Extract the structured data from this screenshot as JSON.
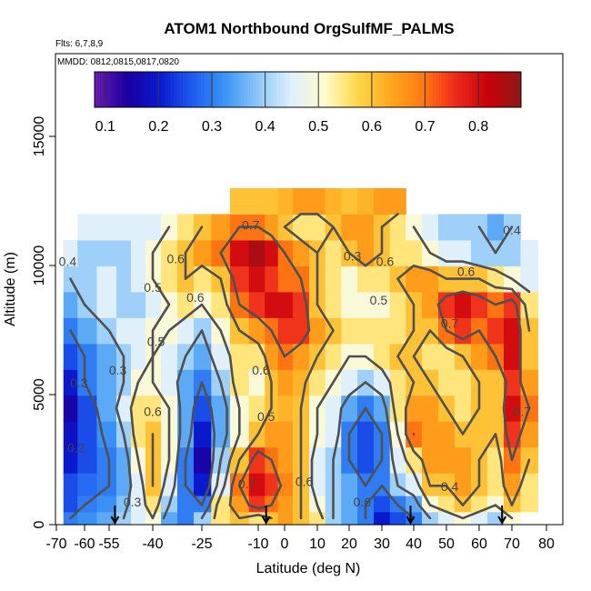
{
  "chart_data": {
    "type": "heatmap",
    "title": "ATOM1 Northbound OrgSulfMF_PALMS",
    "flights_label": "Flts: 6,7,8,9",
    "dates_label": "MMDD: 0812,0815,0817,0820",
    "xlabel": "Latitude (deg N)",
    "ylabel": "Altitude (m)",
    "xlim": [
      -70,
      85
    ],
    "ylim": [
      0,
      17500
    ],
    "x_tick_labels": [
      "-70",
      "-60",
      "-55",
      "-40",
      "-25",
      "-10",
      "0",
      "10",
      "20",
      "30",
      "40",
      "50",
      "60",
      "70",
      "80"
    ],
    "x_tick_values": [
      -70,
      -60,
      -55,
      -40,
      -25,
      -10,
      0,
      10,
      20,
      30,
      40,
      50,
      60,
      70,
      80
    ],
    "y_tick_labels": [
      "0",
      "5000",
      "10000",
      "15000"
    ],
    "y_tick_values": [
      0,
      5000,
      10000,
      15000
    ],
    "colorbar": {
      "range": [
        0.08,
        0.88
      ],
      "tick_labels": [
        "0.1",
        "0.2",
        "0.3",
        "0.4",
        "0.5",
        "0.6",
        "0.7",
        "0.8"
      ],
      "tick_values": [
        0.1,
        0.2,
        0.3,
        0.4,
        0.5,
        0.6,
        0.7,
        0.8
      ],
      "colors": [
        "#6a1bb0",
        "#1a00a0",
        "#0a1ad0",
        "#1f5cf0",
        "#3c96f5",
        "#8fc8f8",
        "#dff0fb",
        "#fffbd0",
        "#ffd84a",
        "#ffa820",
        "#ff7a12",
        "#ee2a1c",
        "#c8000a",
        "#8e1a1a"
      ]
    },
    "latitude_bins": [
      -65,
      -60,
      -55,
      -50,
      -45,
      -40,
      -35,
      -30,
      -25,
      -20,
      -15,
      -10,
      -5,
      0,
      5,
      10,
      15,
      20,
      25,
      30,
      35,
      40,
      45,
      50,
      55,
      60,
      65,
      70,
      75
    ],
    "altitude_bins": [
      250,
      750,
      1500,
      2500,
      3500,
      4500,
      5500,
      6500,
      7500,
      8500,
      9500,
      10500,
      11500,
      12500
    ],
    "values": [
      [
        0.3,
        0.32,
        0.35,
        0.4,
        0.45,
        0.5,
        0.35,
        0.3,
        0.4,
        0.55,
        0.6,
        0.55,
        0.6,
        0.65,
        0.6,
        0.55,
        0.4,
        0.35,
        0.3,
        0.2,
        0.25,
        0.3,
        0.4,
        0.45,
        0.5,
        0.45,
        0.4,
        0.5,
        null
      ],
      [
        0.25,
        0.3,
        0.32,
        0.38,
        0.45,
        0.55,
        0.4,
        0.3,
        0.3,
        0.55,
        0.65,
        0.75,
        0.7,
        0.65,
        0.6,
        0.5,
        0.4,
        0.35,
        0.3,
        0.25,
        0.3,
        0.35,
        0.5,
        0.55,
        0.6,
        0.55,
        0.5,
        0.6,
        0.55
      ],
      [
        0.25,
        0.28,
        0.3,
        0.35,
        0.45,
        0.6,
        0.45,
        0.3,
        0.2,
        0.45,
        0.7,
        0.8,
        0.75,
        0.68,
        0.6,
        0.45,
        0.4,
        0.35,
        0.3,
        0.3,
        0.4,
        0.45,
        0.6,
        0.6,
        0.65,
        0.6,
        0.55,
        0.65,
        0.55
      ],
      [
        0.2,
        0.25,
        0.3,
        0.35,
        0.5,
        0.6,
        0.5,
        0.3,
        0.15,
        0.4,
        0.6,
        0.75,
        0.7,
        0.65,
        0.6,
        0.45,
        0.4,
        0.3,
        0.25,
        0.3,
        0.45,
        0.55,
        0.65,
        0.65,
        0.65,
        0.6,
        0.55,
        0.7,
        0.6
      ],
      [
        0.18,
        0.25,
        0.32,
        0.4,
        0.55,
        0.6,
        0.5,
        0.35,
        0.2,
        0.35,
        0.5,
        0.6,
        0.65,
        0.65,
        0.6,
        0.5,
        0.45,
        0.3,
        0.25,
        0.3,
        0.5,
        0.7,
        0.65,
        0.65,
        0.6,
        0.6,
        0.6,
        0.75,
        0.65
      ],
      [
        0.15,
        0.25,
        0.35,
        0.45,
        0.55,
        0.55,
        0.5,
        0.35,
        0.25,
        0.35,
        0.5,
        0.55,
        0.6,
        0.62,
        0.6,
        0.5,
        0.45,
        0.35,
        0.3,
        0.35,
        0.55,
        0.65,
        0.65,
        0.6,
        0.55,
        0.6,
        0.6,
        0.8,
        0.7
      ],
      [
        0.2,
        0.3,
        0.35,
        0.4,
        0.5,
        0.5,
        0.45,
        0.35,
        0.3,
        0.4,
        0.55,
        0.5,
        0.6,
        0.65,
        0.62,
        0.55,
        0.5,
        0.45,
        0.4,
        0.45,
        0.55,
        0.6,
        0.6,
        0.55,
        0.55,
        0.6,
        0.6,
        0.75,
        0.65
      ],
      [
        0.25,
        0.3,
        0.35,
        0.4,
        0.45,
        0.5,
        0.45,
        0.4,
        0.35,
        0.45,
        0.55,
        0.55,
        0.65,
        0.7,
        0.65,
        0.6,
        0.55,
        0.5,
        0.5,
        0.55,
        0.6,
        0.6,
        0.55,
        0.55,
        0.6,
        0.65,
        0.7,
        0.8,
        0.6
      ],
      [
        0.3,
        0.35,
        0.4,
        0.45,
        0.45,
        0.5,
        0.5,
        0.45,
        0.4,
        0.5,
        0.6,
        0.65,
        0.7,
        0.75,
        0.75,
        0.65,
        0.6,
        0.55,
        0.55,
        0.55,
        0.55,
        0.6,
        0.6,
        0.7,
        0.75,
        0.7,
        0.75,
        0.8,
        0.6
      ],
      [
        0.35,
        0.4,
        0.45,
        0.4,
        0.4,
        0.45,
        0.5,
        0.55,
        0.5,
        0.55,
        0.7,
        0.75,
        0.8,
        0.8,
        0.75,
        0.6,
        0.55,
        0.5,
        0.5,
        0.5,
        0.55,
        0.6,
        0.65,
        0.75,
        0.8,
        0.75,
        0.7,
        0.75,
        0.55
      ],
      [
        0.4,
        0.4,
        0.45,
        0.4,
        0.45,
        0.5,
        0.55,
        0.6,
        0.55,
        0.6,
        0.75,
        0.8,
        0.75,
        0.7,
        0.7,
        0.6,
        0.55,
        0.5,
        0.55,
        0.55,
        0.6,
        0.65,
        0.65,
        0.6,
        0.6,
        0.6,
        0.55,
        0.5,
        0.45
      ],
      [
        0.45,
        0.4,
        0.4,
        0.4,
        0.45,
        0.5,
        0.55,
        0.6,
        0.65,
        0.7,
        0.8,
        0.85,
        0.8,
        0.7,
        0.65,
        0.6,
        0.55,
        0.6,
        0.65,
        0.6,
        0.55,
        0.55,
        0.5,
        0.45,
        0.45,
        0.4,
        0.4,
        0.4,
        0.45
      ],
      [
        null,
        0.45,
        0.45,
        0.45,
        0.45,
        0.45,
        0.5,
        0.55,
        0.6,
        0.65,
        0.7,
        0.7,
        0.65,
        0.6,
        0.55,
        0.55,
        0.6,
        0.65,
        0.65,
        0.6,
        0.55,
        0.5,
        0.45,
        0.4,
        0.4,
        0.4,
        0.35,
        0.4,
        null
      ],
      [
        null,
        null,
        null,
        null,
        null,
        null,
        null,
        null,
        null,
        null,
        0.6,
        0.6,
        0.6,
        0.62,
        0.65,
        0.65,
        0.62,
        0.6,
        0.62,
        0.65,
        0.65,
        null,
        null,
        null,
        null,
        null,
        null,
        null,
        null
      ]
    ],
    "contour_labels": [
      {
        "text": "0.7",
        "lat": -12,
        "alt": 11400
      },
      {
        "text": "0.6",
        "lat": -33,
        "alt": 10100
      },
      {
        "text": "0.4",
        "lat": -66,
        "alt": 10000
      },
      {
        "text": "0.5",
        "lat": -40,
        "alt": 9000
      },
      {
        "text": "0.6",
        "lat": -27,
        "alt": 8600
      },
      {
        "text": "0.5",
        "lat": -39,
        "alt": 6900
      },
      {
        "text": "0.3",
        "lat": -52,
        "alt": 5800
      },
      {
        "text": "0.3",
        "lat": -62,
        "alt": 5300
      },
      {
        "text": "0.6",
        "lat": -40,
        "alt": 4200
      },
      {
        "text": "0.2",
        "lat": -63,
        "alt": 2800
      },
      {
        "text": "0.3",
        "lat": -47,
        "alt": 700
      },
      {
        "text": "0.7",
        "lat": -13,
        "alt": 1400
      },
      {
        "text": "0.5",
        "lat": -7,
        "alt": 4000
      },
      {
        "text": "0.6",
        "lat": -9,
        "alt": 5800
      },
      {
        "text": "0.6",
        "lat": 6,
        "alt": 1500
      },
      {
        "text": "0.3",
        "lat": 21,
        "alt": 10200
      },
      {
        "text": "0.6",
        "lat": 31,
        "alt": 10000
      },
      {
        "text": "0.5",
        "lat": 29,
        "alt": 8500
      },
      {
        "text": "0.6",
        "lat": 56,
        "alt": 9600
      },
      {
        "text": "0.4",
        "lat": 70,
        "alt": 11200
      },
      {
        "text": "0.7",
        "lat": 51,
        "alt": 7600
      },
      {
        "text": "0.4",
        "lat": 51,
        "alt": 1300
      },
      {
        "text": "0.6",
        "lat": 24,
        "alt": 700
      },
      {
        "text": "0.7",
        "lat": 73,
        "alt": 4200
      }
    ],
    "dive_markers_lat": [
      -53,
      -7,
      39,
      67
    ]
  }
}
